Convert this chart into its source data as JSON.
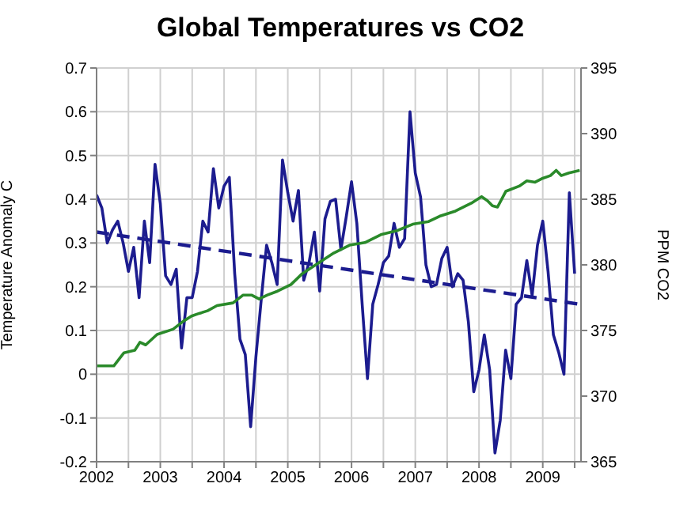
{
  "chart_data": {
    "type": "line",
    "title": "Global Temperatures vs CO2",
    "ylabel": "Temperature Anomaly C",
    "y2label": "PPM CO2",
    "xlim": [
      2002,
      2009.6
    ],
    "xticks": [
      2002,
      {
        "value": 2002.5,
        "label": null
      },
      2003,
      {
        "value": 2003.5,
        "label": null
      },
      2004,
      {
        "value": 2004.5,
        "label": null
      },
      2005,
      {
        "value": 2005.5,
        "label": null
      },
      2006,
      {
        "value": 2006.5,
        "label": null
      },
      2007,
      {
        "value": 2007.5,
        "label": null
      },
      2008,
      {
        "value": 2008.5,
        "label": null
      },
      2009,
      {
        "value": 2009.5,
        "label": null
      }
    ],
    "ylim": [
      -0.2,
      0.7
    ],
    "yticks": [
      -0.2,
      -0.1,
      0,
      0.1,
      0.2,
      0.3,
      0.4,
      0.5,
      0.6,
      0.7
    ],
    "y2lim": [
      365,
      395
    ],
    "y2ticks": [
      365,
      370,
      375,
      380,
      385,
      390,
      395
    ],
    "grid": true,
    "series": [
      {
        "color": "#1c1c8f",
        "x": [
          2002,
          2002.083,
          2002.167,
          2002.25,
          2002.333,
          2002.417,
          2002.5,
          2002.583,
          2002.667,
          2002.75,
          2002.833,
          2002.917,
          2003,
          2003.083,
          2003.167,
          2003.25,
          2003.333,
          2003.417,
          2003.5,
          2003.583,
          2003.667,
          2003.75,
          2003.833,
          2003.917,
          2004,
          2004.083,
          2004.167,
          2004.25,
          2004.333,
          2004.417,
          2004.5,
          2004.583,
          2004.667,
          2004.75,
          2004.833,
          2004.917,
          2005,
          2005.083,
          2005.167,
          2005.25,
          2005.333,
          2005.417,
          2005.5,
          2005.583,
          2005.667,
          2005.75,
          2005.833,
          2005.917,
          2006,
          2006.083,
          2006.167,
          2006.25,
          2006.333,
          2006.417,
          2006.5,
          2006.583,
          2006.667,
          2006.75,
          2006.833,
          2006.917,
          2007,
          2007.083,
          2007.167,
          2007.25,
          2007.333,
          2007.417,
          2007.5,
          2007.583,
          2007.667,
          2007.75,
          2007.833,
          2007.917,
          2008,
          2008.083,
          2008.167,
          2008.25,
          2008.333,
          2008.417,
          2008.5,
          2008.583,
          2008.667,
          2008.75,
          2008.833,
          2008.917,
          2009,
          2009.083,
          2009.167,
          2009.25,
          2009.333,
          2009.417,
          2009.5
        ],
        "values": [
          0.41,
          0.38,
          0.3,
          0.33,
          0.35,
          0.3,
          0.235,
          0.29,
          0.175,
          0.35,
          0.255,
          0.48,
          0.39,
          0.225,
          0.205,
          0.24,
          0.06,
          0.175,
          0.175,
          0.235,
          0.35,
          0.325,
          0.47,
          0.38,
          0.43,
          0.45,
          0.23,
          0.08,
          0.045,
          -0.12,
          0.04,
          0.17,
          0.295,
          0.255,
          0.205,
          0.49,
          0.415,
          0.35,
          0.42,
          0.215,
          0.255,
          0.325,
          0.19,
          0.355,
          0.395,
          0.4,
          0.285,
          0.36,
          0.44,
          0.345,
          0.16,
          -0.01,
          0.16,
          0.205,
          0.255,
          0.27,
          0.345,
          0.29,
          0.31,
          0.6,
          0.46,
          0.405,
          0.25,
          0.2,
          0.205,
          0.265,
          0.29,
          0.2,
          0.23,
          0.215,
          0.12,
          -0.04,
          0.01,
          0.09,
          0.01,
          -0.18,
          -0.105,
          0.055,
          -0.01,
          0.16,
          0.175,
          0.26,
          0.18,
          0.295,
          0.35,
          0.235,
          0.09,
          0.05,
          0.0,
          0.415,
          0.23
        ]
      },
      {
        "color": "#2a8a2a",
        "axis": "y2",
        "x": [
          2002,
          2002.27,
          2002.43,
          2002.6,
          2002.68,
          2002.77,
          2002.95,
          2003.2,
          2003.36,
          2003.49,
          2003.61,
          2003.74,
          2003.89,
          2004.14,
          2004.3,
          2004.43,
          2004.55,
          2004.68,
          2004.84,
          2005.05,
          2005.22,
          2005.47,
          2005.72,
          2005.97,
          2006.21,
          2006.46,
          2006.71,
          2006.96,
          2007.21,
          2007.38,
          2007.63,
          2007.88,
          2008.04,
          2008.13,
          2008.21,
          2008.29,
          2008.42,
          2008.63,
          2008.75,
          2008.88,
          2009,
          2009.12,
          2009.21,
          2009.29,
          2009.41,
          2009.58
        ],
        "values": [
          372.3,
          372.3,
          373.3,
          373.5,
          374.1,
          373.9,
          374.7,
          375.1,
          375.7,
          376.1,
          376.3,
          376.5,
          376.9,
          377.1,
          377.7,
          377.7,
          377.4,
          377.7,
          378.0,
          378.5,
          379.3,
          380.1,
          380.9,
          381.5,
          381.7,
          382.3,
          382.6,
          383.1,
          383.3,
          383.7,
          384.1,
          384.7,
          385.2,
          384.9,
          384.5,
          384.4,
          385.6,
          386.0,
          386.4,
          386.3,
          386.6,
          386.8,
          387.2,
          386.8,
          387.0,
          387.2
        ]
      },
      {
        "color": "#1c1c8f",
        "line_style": "dashed",
        "x": [
          2002,
          2009.58
        ],
        "values": [
          0.325,
          0.16
        ]
      }
    ]
  }
}
